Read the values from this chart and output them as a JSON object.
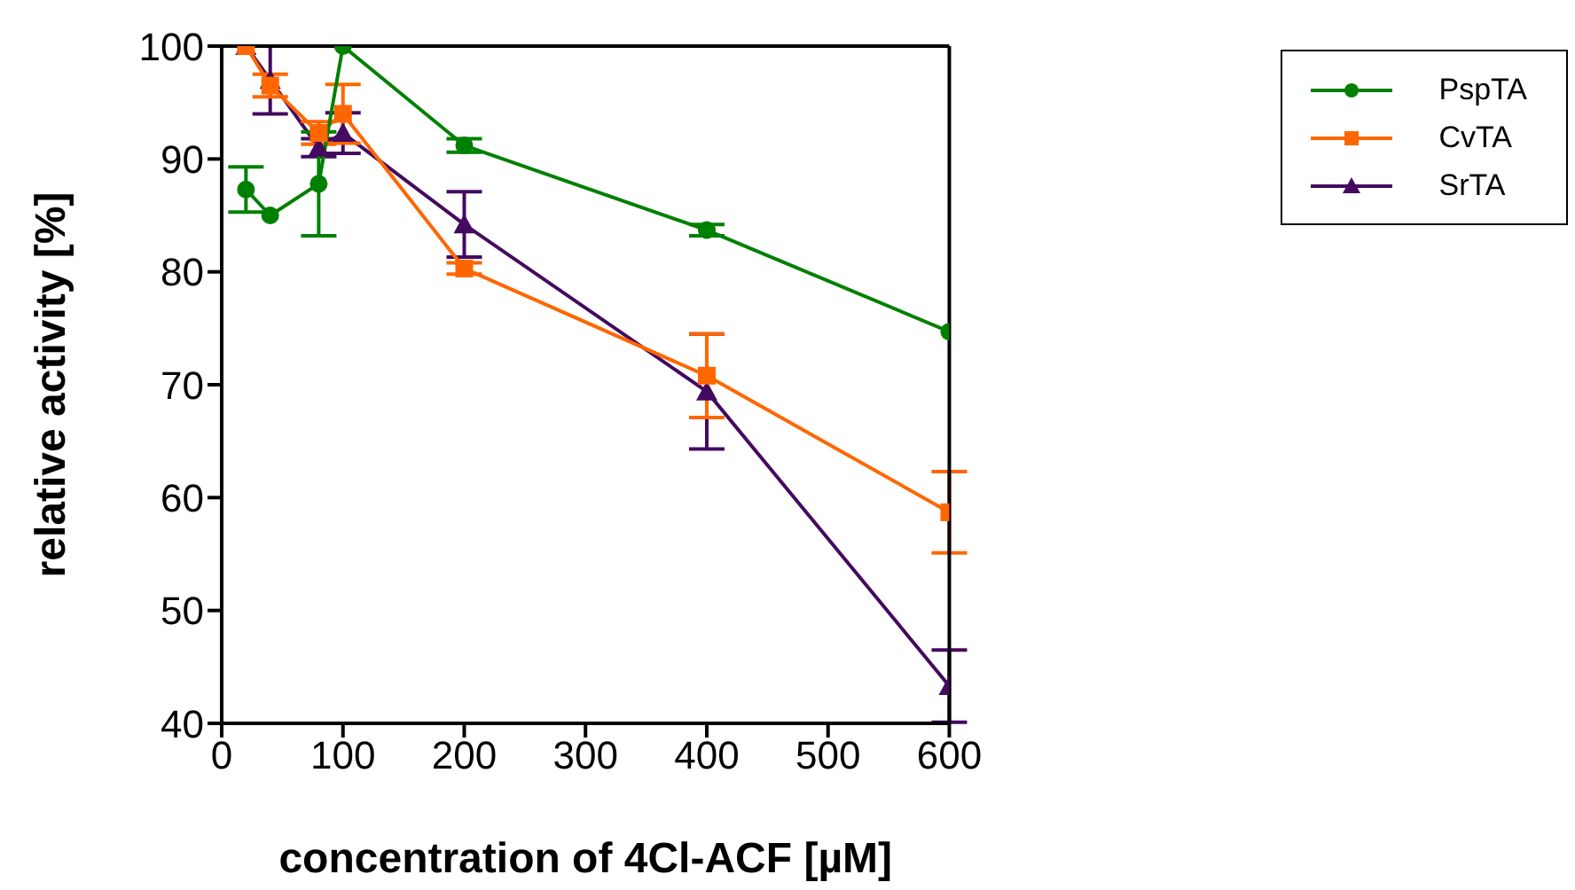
{
  "chart_data": {
    "type": "line",
    "xlabel": "concentration of 4Cl-ACF [µM]",
    "ylabel": "relative activity [%]",
    "xlim": [
      0,
      600
    ],
    "xticks": [
      0,
      100,
      200,
      300,
      400,
      500,
      600
    ],
    "ylim": [
      40,
      100
    ],
    "yticks": [
      40,
      50,
      60,
      70,
      80,
      90,
      100
    ],
    "legend": "top right",
    "line_style": "solid",
    "x": [
      20,
      40,
      80,
      100,
      200,
      400,
      600
    ],
    "series": [
      {
        "name": "PspTA",
        "color": "#008000",
        "marker": "circle",
        "values": [
          87.3,
          85,
          87.8,
          100,
          91.2,
          83.7,
          74.7
        ],
        "errors": [
          2,
          null,
          4.6,
          null,
          0.6,
          0.5,
          null
        ]
      },
      {
        "name": "CvTA",
        "color": "#ff6600",
        "marker": "square",
        "values": [
          100,
          96.5,
          92.3,
          94,
          80.3,
          70.8,
          58.7
        ],
        "errors": [
          null,
          1,
          1,
          2.6,
          0.5,
          3.7,
          3.6
        ]
      },
      {
        "name": "SrTA",
        "color": "#440a5f",
        "marker": "triangle",
        "values": [
          100,
          97,
          91,
          92.3,
          84.2,
          69.4,
          43.3
        ],
        "errors": [
          null,
          3,
          0.8,
          1.8,
          2.9,
          5.1,
          3.2
        ]
      }
    ]
  }
}
